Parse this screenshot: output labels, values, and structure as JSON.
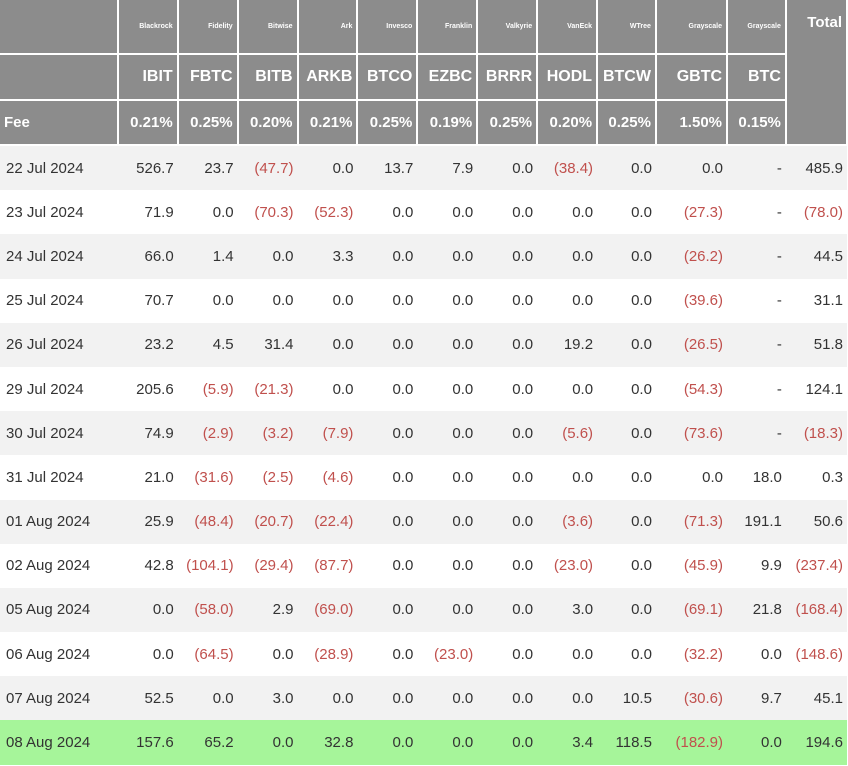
{
  "table": {
    "issuers": [
      "",
      "Blackrock",
      "Fidelity",
      "Bitwise",
      "Ark",
      "Invesco",
      "Franklin",
      "Valkyrie",
      "VanEck",
      "WTree",
      "Grayscale",
      "Grayscale"
    ],
    "total_label": "Total",
    "tickers": [
      "",
      "IBIT",
      "FBTC",
      "BITB",
      "ARKB",
      "BTCO",
      "EZBC",
      "BRRR",
      "HODL",
      "BTCW",
      "GBTC",
      "BTC"
    ],
    "fee_label": "Fee",
    "fees": [
      "0.21%",
      "0.25%",
      "0.20%",
      "0.21%",
      "0.25%",
      "0.19%",
      "0.25%",
      "0.20%",
      "0.25%",
      "1.50%",
      "0.15%"
    ],
    "negative_color": "#c0504d",
    "highlight_color": "#a6f59a",
    "header_color": "#8c8c8c",
    "rows": [
      {
        "date": "22 Jul 2024",
        "values": [
          "526.7",
          "23.7",
          "(47.7)",
          "0.0",
          "13.7",
          "7.9",
          "0.0",
          "(38.4)",
          "0.0",
          "0.0",
          "-",
          "485.9"
        ]
      },
      {
        "date": "23 Jul 2024",
        "values": [
          "71.9",
          "0.0",
          "(70.3)",
          "(52.3)",
          "0.0",
          "0.0",
          "0.0",
          "0.0",
          "0.0",
          "(27.3)",
          "-",
          "(78.0)"
        ]
      },
      {
        "date": "24 Jul 2024",
        "values": [
          "66.0",
          "1.4",
          "0.0",
          "3.3",
          "0.0",
          "0.0",
          "0.0",
          "0.0",
          "0.0",
          "(26.2)",
          "-",
          "44.5"
        ]
      },
      {
        "date": "25 Jul 2024",
        "values": [
          "70.7",
          "0.0",
          "0.0",
          "0.0",
          "0.0",
          "0.0",
          "0.0",
          "0.0",
          "0.0",
          "(39.6)",
          "-",
          "31.1"
        ]
      },
      {
        "date": "26 Jul 2024",
        "values": [
          "23.2",
          "4.5",
          "31.4",
          "0.0",
          "0.0",
          "0.0",
          "0.0",
          "19.2",
          "0.0",
          "(26.5)",
          "-",
          "51.8"
        ]
      },
      {
        "date": "29 Jul 2024",
        "values": [
          "205.6",
          "(5.9)",
          "(21.3)",
          "0.0",
          "0.0",
          "0.0",
          "0.0",
          "0.0",
          "0.0",
          "(54.3)",
          "-",
          "124.1"
        ]
      },
      {
        "date": "30 Jul 2024",
        "values": [
          "74.9",
          "(2.9)",
          "(3.2)",
          "(7.9)",
          "0.0",
          "0.0",
          "0.0",
          "(5.6)",
          "0.0",
          "(73.6)",
          "-",
          "(18.3)"
        ]
      },
      {
        "date": "31 Jul 2024",
        "values": [
          "21.0",
          "(31.6)",
          "(2.5)",
          "(4.6)",
          "0.0",
          "0.0",
          "0.0",
          "0.0",
          "0.0",
          "0.0",
          "18.0",
          "0.3"
        ]
      },
      {
        "date": "01 Aug 2024",
        "values": [
          "25.9",
          "(48.4)",
          "(20.7)",
          "(22.4)",
          "0.0",
          "0.0",
          "0.0",
          "(3.6)",
          "0.0",
          "(71.3)",
          "191.1",
          "50.6"
        ]
      },
      {
        "date": "02 Aug 2024",
        "values": [
          "42.8",
          "(104.1)",
          "(29.4)",
          "(87.7)",
          "0.0",
          "0.0",
          "0.0",
          "(23.0)",
          "0.0",
          "(45.9)",
          "9.9",
          "(237.4)"
        ]
      },
      {
        "date": "05 Aug 2024",
        "values": [
          "0.0",
          "(58.0)",
          "2.9",
          "(69.0)",
          "0.0",
          "0.0",
          "0.0",
          "3.0",
          "0.0",
          "(69.1)",
          "21.8",
          "(168.4)"
        ]
      },
      {
        "date": "06 Aug 2024",
        "values": [
          "0.0",
          "(64.5)",
          "0.0",
          "(28.9)",
          "0.0",
          "(23.0)",
          "0.0",
          "0.0",
          "0.0",
          "(32.2)",
          "0.0",
          "(148.6)"
        ]
      },
      {
        "date": "07 Aug 2024",
        "values": [
          "52.5",
          "0.0",
          "3.0",
          "0.0",
          "0.0",
          "0.0",
          "0.0",
          "0.0",
          "10.5",
          "(30.6)",
          "9.7",
          "45.1"
        ]
      },
      {
        "date": "08 Aug 2024",
        "values": [
          "157.6",
          "65.2",
          "0.0",
          "32.8",
          "0.0",
          "0.0",
          "0.0",
          "3.4",
          "118.5",
          "(182.9)",
          "0.0",
          "194.6"
        ],
        "highlight": true
      }
    ]
  }
}
